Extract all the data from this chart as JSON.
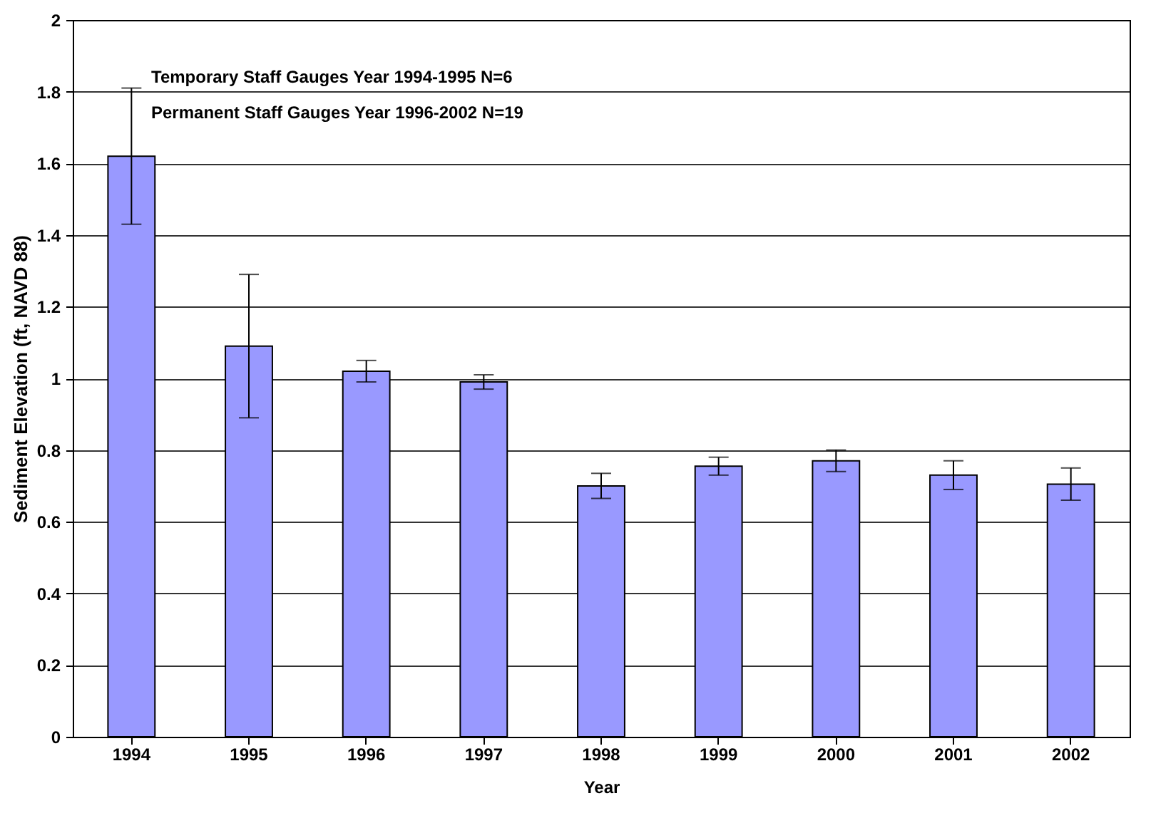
{
  "chart_data": {
    "type": "bar",
    "xlabel": "Year",
    "ylabel": "Sediment Elevation (ft, NAVD 88)",
    "categories": [
      "1994",
      "1995",
      "1996",
      "1997",
      "1998",
      "1999",
      "2000",
      "2001",
      "2002"
    ],
    "values": [
      1.62,
      1.09,
      1.02,
      0.99,
      0.7,
      0.755,
      0.77,
      0.73,
      0.705
    ],
    "errors": [
      0.19,
      0.2,
      0.03,
      0.02,
      0.035,
      0.025,
      0.03,
      0.04,
      0.045
    ],
    "color": "#9999ff",
    "ylim": [
      0,
      2
    ],
    "yticks": [
      0,
      0.2,
      0.4,
      0.6,
      0.8,
      1,
      1.2,
      1.4,
      1.6,
      1.8,
      2
    ],
    "grid": "y",
    "annotations": [
      "Temporary Staff Gauges Year 1994-1995 N=6",
      "Permanent Staff Gauges Year 1996-2002 N=19"
    ]
  }
}
